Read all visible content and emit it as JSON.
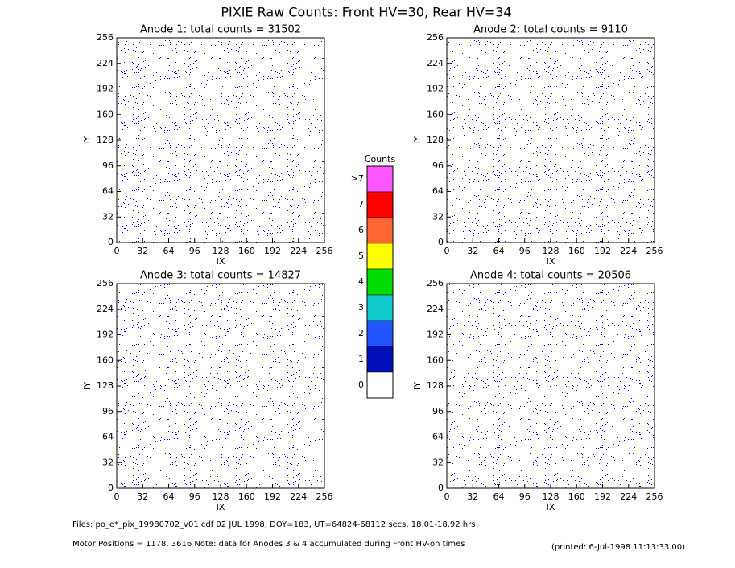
{
  "title": "PIXIE Raw Counts:  Front HV=30, Rear HV=34",
  "chart_data": [
    {
      "type": "heatmap",
      "title": "Anode 1: total counts = 31502",
      "x_label": "IX",
      "y_label": "IY",
      "xlim": [
        0,
        256
      ],
      "ylim": [
        0,
        256
      ],
      "xticks": [
        0,
        32,
        64,
        96,
        128,
        160,
        192,
        224,
        256
      ],
      "yticks": [
        0,
        32,
        64,
        96,
        128,
        160,
        192,
        224,
        256
      ]
    },
    {
      "type": "heatmap",
      "title": "Anode 2: total counts = 9110",
      "x_label": "IX",
      "y_label": "IY",
      "xlim": [
        0,
        256
      ],
      "ylim": [
        0,
        256
      ],
      "xticks": [
        0,
        32,
        64,
        96,
        128,
        160,
        192,
        224,
        256
      ],
      "yticks": [
        0,
        32,
        64,
        96,
        128,
        160,
        192,
        224,
        256
      ]
    },
    {
      "type": "heatmap",
      "title": "Anode 3: total counts = 14827",
      "x_label": "IX",
      "y_label": "IY",
      "xlim": [
        0,
        256
      ],
      "ylim": [
        0,
        256
      ],
      "xticks": [
        0,
        32,
        64,
        96,
        128,
        160,
        192,
        224,
        256
      ],
      "yticks": [
        0,
        32,
        64,
        96,
        128,
        160,
        192,
        224,
        256
      ]
    },
    {
      "type": "heatmap",
      "title": "Anode 4: total counts = 20506",
      "x_label": "IX",
      "y_label": "IY",
      "xlim": [
        0,
        256
      ],
      "ylim": [
        0,
        256
      ],
      "xticks": [
        0,
        32,
        64,
        96,
        128,
        160,
        192,
        224,
        256
      ],
      "yticks": [
        0,
        32,
        64,
        96,
        128,
        160,
        192,
        224,
        256
      ]
    }
  ],
  "colorbar": {
    "title": "Counts",
    "levels": [
      {
        "label": ">7",
        "color": "#ff55ff"
      },
      {
        "label": "7",
        "color": "#ff0000"
      },
      {
        "label": "6",
        "color": "#ff6633"
      },
      {
        "label": "5",
        "color": "#ffff00"
      },
      {
        "label": "4",
        "color": "#00dd00"
      },
      {
        "label": "3",
        "color": "#11cccc"
      },
      {
        "label": "2",
        "color": "#2255ff"
      },
      {
        "label": "1",
        "color": "#0011bb"
      },
      {
        "label": "0",
        "color": "#ffffff"
      }
    ]
  },
  "footer": {
    "files": "Files: po_e*_pix_19980702_v01.cdf     02 JUL 1998, DOY=183, UT=64824-68112 secs, 18.01-18.92 hrs",
    "motor": "Motor Positions = 1178, 3616    Note: data for Anodes 3 & 4 accumulated during Front HV-on times",
    "printed": "(printed:  6-Jul-1998 11:13:33.00)"
  }
}
